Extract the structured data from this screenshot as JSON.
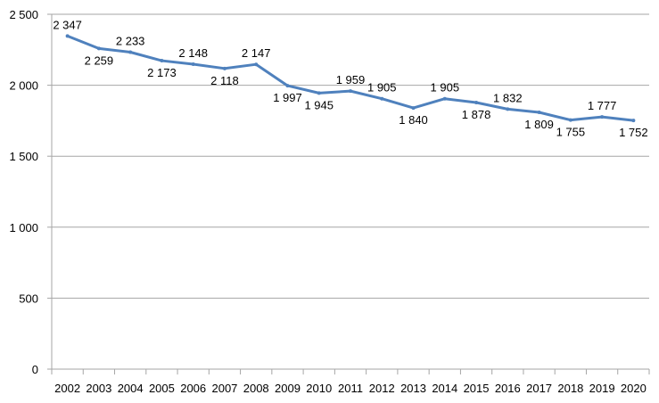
{
  "chart_data": {
    "type": "line",
    "title": "",
    "xlabel": "",
    "ylabel": "",
    "categories": [
      "2002",
      "2003",
      "2004",
      "2005",
      "2006",
      "2007",
      "2008",
      "2009",
      "2010",
      "2011",
      "2012",
      "2013",
      "2014",
      "2015",
      "2016",
      "2017",
      "2018",
      "2019",
      "2020"
    ],
    "series": [
      {
        "name": "",
        "values": [
          2347,
          2259,
          2233,
          2173,
          2148,
          2118,
          2147,
          1997,
          1945,
          1959,
          1905,
          1840,
          1905,
          1878,
          1832,
          1809,
          1755,
          1777,
          1752
        ],
        "data_labels": [
          "2 347",
          "2 259",
          "2 233",
          "2 173",
          "2 148",
          "2 118",
          "2 147",
          "1 997",
          "1 945",
          "1 959",
          "1 905",
          "1 840",
          "1 905",
          "1 878",
          "1 832",
          "1 809",
          "1 755",
          "1 777",
          "1 752"
        ]
      }
    ],
    "ylim": [
      0,
      2500
    ],
    "yticks": [
      0,
      500,
      1000,
      1500,
      2000,
      2500
    ],
    "ytick_labels": [
      "0",
      "500",
      "1 000",
      "1 500",
      "2 000",
      "2 500"
    ],
    "grid": true,
    "legend": "none",
    "colors": {
      "line": "#4f81bd",
      "grid": "#a6a6a6",
      "axis": "#a6a6a6",
      "text": "#000000"
    }
  }
}
